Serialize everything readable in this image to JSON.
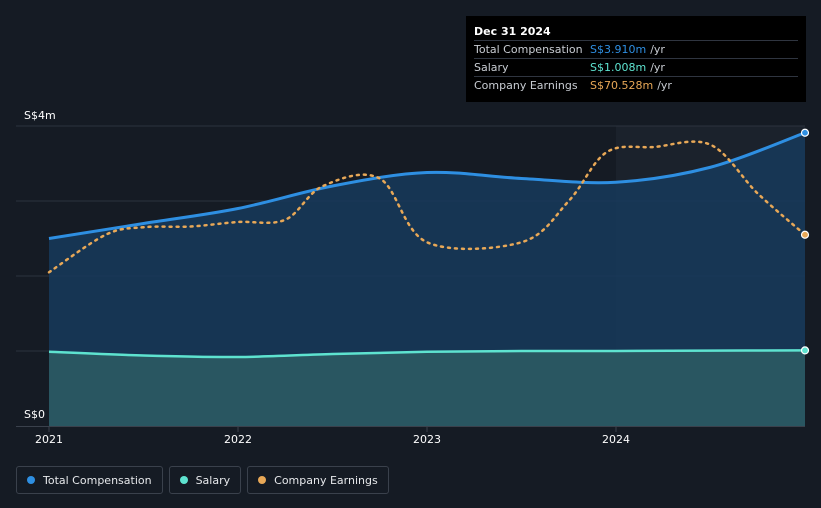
{
  "chart_data": {
    "type": "area",
    "title": "",
    "ylabel": "",
    "xlabel": "",
    "ylim": [
      0,
      4
    ],
    "y_unit": "S$m",
    "y_tick_labels": [
      "S$4m",
      "S$0"
    ],
    "x_range": [
      2020.94,
      2025.0
    ],
    "x_ticks": [
      {
        "label": "2021",
        "x": 2021.0
      },
      {
        "label": "2022",
        "x": 2022.0
      },
      {
        "label": "2023",
        "x": 2023.0
      },
      {
        "label": "2024",
        "x": 2024.0
      }
    ],
    "highlight_from": 2024.0,
    "series": [
      {
        "name": "Total Compensation",
        "color": "#2e8fe2",
        "style": "area",
        "x": [
          2021.0,
          2021.5,
          2022.0,
          2022.5,
          2023.0,
          2023.5,
          2024.0,
          2024.5,
          2025.0
        ],
        "values": [
          2.5,
          2.7,
          2.9,
          3.2,
          3.38,
          3.3,
          3.25,
          3.45,
          3.91
        ]
      },
      {
        "name": "Salary",
        "color": "#5ee3d0",
        "style": "area",
        "x": [
          2021.0,
          2021.5,
          2022.0,
          2022.5,
          2023.0,
          2023.5,
          2024.0,
          2024.5,
          2025.0
        ],
        "values": [
          0.99,
          0.94,
          0.92,
          0.96,
          0.99,
          1.0,
          1.0,
          1.005,
          1.008
        ]
      },
      {
        "name": "Company Earnings",
        "color": "#e8a857",
        "style": "dotted",
        "x": [
          2021.0,
          2021.3,
          2021.5,
          2021.75,
          2022.0,
          2022.25,
          2022.45,
          2022.75,
          2023.0,
          2023.5,
          2023.75,
          2023.95,
          2024.2,
          2024.5,
          2024.75,
          2025.0
        ],
        "values": [
          2.05,
          2.55,
          2.65,
          2.66,
          2.72,
          2.75,
          3.2,
          3.3,
          2.45,
          2.45,
          3.0,
          3.65,
          3.72,
          3.75,
          3.1,
          2.55
        ]
      }
    ]
  },
  "tooltip": {
    "date": "Dec 31 2024",
    "rows": [
      {
        "label": "Total Compensation",
        "value": "S$3.910m",
        "unit": "/yr",
        "color": "#2e8fe2"
      },
      {
        "label": "Salary",
        "value": "S$1.008m",
        "unit": "/yr",
        "color": "#5ee3d0"
      },
      {
        "label": "Company Earnings",
        "value": "S$70.528m",
        "unit": "/yr",
        "color": "#e8a857"
      }
    ]
  },
  "legend": [
    {
      "label": "Total Compensation",
      "color": "#2e8fe2"
    },
    {
      "label": "Salary",
      "color": "#5ee3d0"
    },
    {
      "label": "Company Earnings",
      "color": "#e8a857"
    }
  ]
}
